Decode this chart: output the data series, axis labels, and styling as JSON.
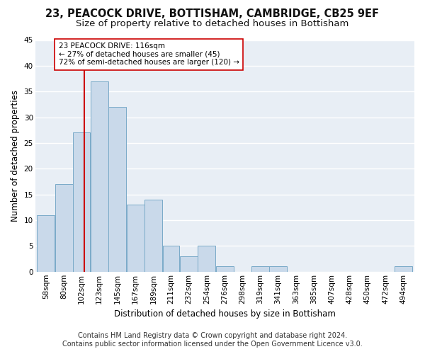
{
  "title": "23, PEACOCK DRIVE, BOTTISHAM, CAMBRIDGE, CB25 9EF",
  "subtitle": "Size of property relative to detached houses in Bottisham",
  "xlabel": "Distribution of detached houses by size in Bottisham",
  "ylabel": "Number of detached properties",
  "footer_line1": "Contains HM Land Registry data © Crown copyright and database right 2024.",
  "footer_line2": "Contains public sector information licensed under the Open Government Licence v3.0.",
  "bin_labels": [
    "58sqm",
    "80sqm",
    "102sqm",
    "123sqm",
    "145sqm",
    "167sqm",
    "189sqm",
    "211sqm",
    "232sqm",
    "254sqm",
    "276sqm",
    "298sqm",
    "319sqm",
    "341sqm",
    "363sqm",
    "385sqm",
    "407sqm",
    "428sqm",
    "450sqm",
    "472sqm",
    "494sqm"
  ],
  "bin_edges": [
    58,
    80,
    102,
    123,
    145,
    167,
    189,
    211,
    232,
    254,
    276,
    298,
    319,
    341,
    363,
    385,
    407,
    428,
    450,
    472,
    494,
    516
  ],
  "counts": [
    11,
    17,
    27,
    37,
    32,
    13,
    14,
    5,
    3,
    5,
    1,
    0,
    1,
    1,
    0,
    0,
    0,
    0,
    0,
    0,
    1
  ],
  "bar_facecolor": "#c9d9ea",
  "bar_edgecolor": "#7aaac8",
  "subject_value": 116,
  "subject_line_color": "#cc0000",
  "annotation_text": "23 PEACOCK DRIVE: 116sqm\n← 27% of detached houses are smaller (45)\n72% of semi-detached houses are larger (120) →",
  "annotation_box_edgecolor": "#cc0000",
  "annotation_box_facecolor": "#ffffff",
  "ylim": [
    0,
    45
  ],
  "yticks": [
    0,
    5,
    10,
    15,
    20,
    25,
    30,
    35,
    40,
    45
  ],
  "fig_background": "#ffffff",
  "plot_background": "#e8eef5",
  "grid_color": "#ffffff",
  "title_fontsize": 10.5,
  "subtitle_fontsize": 9.5,
  "axis_label_fontsize": 8.5,
  "tick_fontsize": 7.5,
  "footer_fontsize": 7,
  "annotation_fontsize": 7.5
}
